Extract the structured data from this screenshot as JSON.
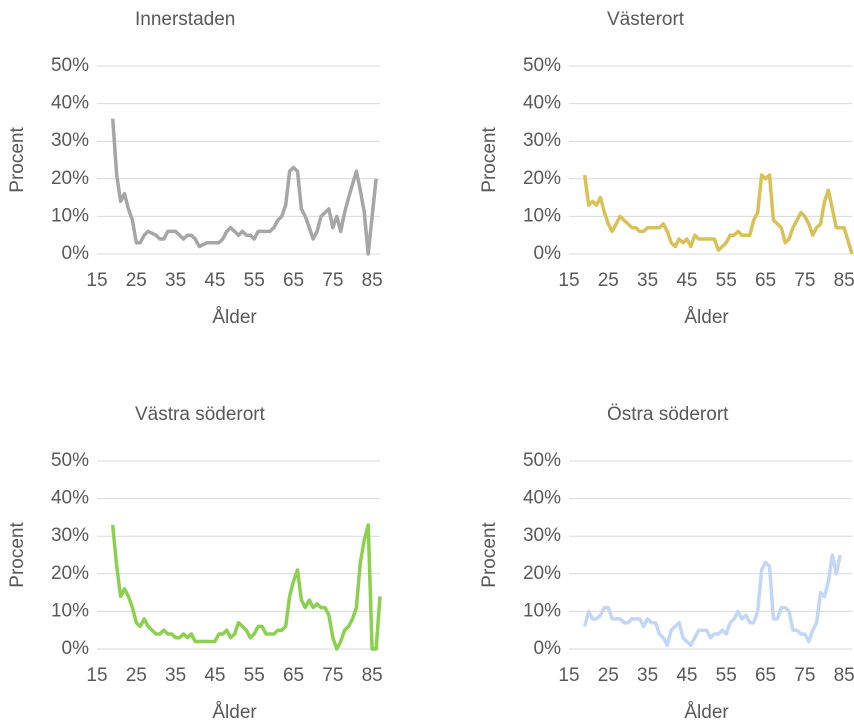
{
  "chart_data": [
    {
      "type": "line",
      "title": "Innerstaden",
      "x_label": "Ålder",
      "y_label": "Procent",
      "color": "#a6a6a6",
      "x": [
        19,
        20,
        21,
        22,
        23,
        24,
        25,
        26,
        27,
        28,
        30,
        31,
        32,
        33,
        35,
        37,
        38,
        39,
        40,
        41,
        43,
        46,
        47,
        48,
        49,
        50,
        51,
        52,
        53,
        54,
        55,
        56,
        59,
        60,
        61,
        62,
        63,
        64,
        65,
        66,
        67,
        68,
        69,
        70,
        71,
        72,
        73,
        74,
        75,
        76,
        77,
        78,
        79,
        81,
        82,
        83,
        84,
        86
      ],
      "values": [
        36,
        21,
        14,
        16,
        12,
        9,
        3,
        3,
        5,
        6,
        5,
        4,
        4,
        6,
        6,
        4,
        5,
        5,
        4,
        2,
        3,
        3,
        4,
        6,
        7,
        6,
        5,
        6,
        5,
        5,
        4,
        6,
        6,
        7,
        9,
        10,
        13,
        22,
        23,
        22,
        12,
        10,
        7,
        4,
        6,
        10,
        11,
        12,
        7,
        10,
        6,
        11,
        15,
        22,
        17,
        11,
        0,
        20
      ],
      "xlim": [
        15,
        87
      ],
      "xticks": [
        15,
        25,
        35,
        45,
        55,
        65,
        75,
        85
      ],
      "ylim": [
        0,
        50
      ],
      "yticks": [
        {
          "value": 0,
          "label": "0%"
        },
        {
          "value": 10,
          "label": "10%"
        },
        {
          "value": 20,
          "label": "20%"
        },
        {
          "value": 30,
          "label": "30%"
        },
        {
          "value": 40,
          "label": "40%"
        },
        {
          "value": 50,
          "label": "50%"
        }
      ],
      "grid": true
    },
    {
      "type": "line",
      "title": "Västerort",
      "x_label": "Ålder",
      "y_label": "Procent",
      "color": "#d9c158",
      "x": [
        19,
        20,
        21,
        22,
        23,
        24,
        25,
        26,
        27,
        28,
        29,
        30,
        31,
        32,
        33,
        34,
        35,
        37,
        38,
        39,
        40,
        41,
        42,
        43,
        44,
        45,
        46,
        47,
        48,
        52,
        53,
        54,
        55,
        56,
        57,
        58,
        59,
        61,
        62,
        63,
        64,
        65,
        66,
        67,
        68,
        69,
        70,
        71,
        72,
        73,
        74,
        75,
        76,
        77,
        78,
        79,
        80,
        81,
        83,
        85,
        87
      ],
      "values": [
        21,
        13,
        14,
        13,
        15,
        11,
        8,
        6,
        8,
        10,
        9,
        8,
        7,
        7,
        6,
        6,
        7,
        7,
        7,
        8,
        6,
        3,
        2,
        4,
        3,
        4,
        2,
        5,
        4,
        4,
        1,
        2,
        3,
        5,
        5,
        6,
        5,
        5,
        9,
        11,
        21,
        20,
        21,
        9,
        8,
        7,
        3,
        4,
        7,
        9,
        11,
        10,
        8,
        5,
        7,
        8,
        14,
        17,
        7,
        7,
        0
      ],
      "xlim": [
        15,
        87
      ],
      "xticks": [
        15,
        25,
        35,
        45,
        55,
        65,
        75,
        85
      ],
      "ylim": [
        0,
        50
      ],
      "yticks": [
        {
          "value": 0,
          "label": "0%"
        },
        {
          "value": 10,
          "label": "10%"
        },
        {
          "value": 20,
          "label": "20%"
        },
        {
          "value": 30,
          "label": "30%"
        },
        {
          "value": 40,
          "label": "40%"
        },
        {
          "value": 50,
          "label": "50%"
        }
      ],
      "grid": true
    },
    {
      "type": "line",
      "title": "Västra söderort",
      "x_label": "Ålder",
      "y_label": "Procent",
      "color": "#8cd04f",
      "x": [
        19,
        20,
        21,
        22,
        23,
        24,
        25,
        26,
        27,
        28,
        29,
        30,
        31,
        32,
        33,
        34,
        35,
        36,
        37,
        38,
        39,
        40,
        45,
        46,
        47,
        48,
        49,
        50,
        51,
        52,
        53,
        54,
        55,
        56,
        57,
        58,
        60,
        61,
        62,
        63,
        64,
        65,
        66,
        67,
        68,
        69,
        70,
        71,
        72,
        73,
        74,
        75,
        76,
        77,
        78,
        79,
        80,
        81,
        82,
        83,
        84,
        85,
        86,
        87
      ],
      "values": [
        33,
        22,
        14,
        16,
        14,
        11,
        7,
        6,
        8,
        6,
        5,
        4,
        4,
        5,
        4,
        4,
        3,
        3,
        4,
        3,
        4,
        2,
        2,
        4,
        4,
        5,
        3,
        4,
        7,
        6,
        5,
        3,
        4,
        6,
        6,
        4,
        4,
        5,
        5,
        6,
        14,
        18,
        21,
        13,
        11,
        13,
        11,
        12,
        11,
        11,
        9,
        3,
        0,
        2,
        5,
        6,
        8,
        11,
        23,
        29,
        33,
        0,
        0,
        14
      ],
      "xlim": [
        15,
        87
      ],
      "xticks": [
        15,
        25,
        35,
        45,
        55,
        65,
        75,
        85
      ],
      "ylim": [
        0,
        50
      ],
      "yticks": [
        {
          "value": 0,
          "label": "0%"
        },
        {
          "value": 10,
          "label": "10%"
        },
        {
          "value": 20,
          "label": "20%"
        },
        {
          "value": 30,
          "label": "30%"
        },
        {
          "value": 40,
          "label": "40%"
        },
        {
          "value": 50,
          "label": "50%"
        }
      ],
      "grid": true
    },
    {
      "type": "line",
      "title": "Östra söderort",
      "x_label": "Ålder",
      "y_label": "Procent",
      "color": "#c2d6f5",
      "x": [
        19,
        20,
        21,
        22,
        23,
        24,
        25,
        26,
        27,
        28,
        29,
        30,
        31,
        32,
        33,
        34,
        35,
        36,
        37,
        38,
        39,
        40,
        41,
        42,
        43,
        44,
        45,
        46,
        47,
        48,
        49,
        50,
        51,
        52,
        53,
        54,
        55,
        56,
        57,
        58,
        59,
        60,
        61,
        62,
        63,
        64,
        65,
        66,
        67,
        68,
        69,
        70,
        71,
        72,
        73,
        74,
        75,
        76,
        77,
        78,
        79,
        80,
        81,
        82,
        83,
        84
      ],
      "values": [
        6,
        10,
        8,
        8,
        9,
        11,
        11,
        8,
        8,
        8,
        7,
        7,
        8,
        8,
        8,
        6,
        8,
        7,
        7,
        4,
        3,
        1,
        5,
        6,
        7,
        3,
        2,
        1,
        3,
        5,
        5,
        5,
        3,
        4,
        4,
        5,
        4,
        7,
        8,
        10,
        8,
        9,
        7,
        7,
        10,
        21,
        23,
        22,
        8,
        8,
        11,
        11,
        10,
        5,
        5,
        4,
        4,
        2,
        5,
        7,
        15,
        14,
        18,
        25,
        20,
        25
      ],
      "xlim": [
        15,
        87
      ],
      "xticks": [
        15,
        25,
        35,
        45,
        55,
        65,
        75,
        85
      ],
      "ylim": [
        0,
        50
      ],
      "yticks": [
        {
          "value": 0,
          "label": "0%"
        },
        {
          "value": 10,
          "label": "10%"
        },
        {
          "value": 20,
          "label": "20%"
        },
        {
          "value": 30,
          "label": "30%"
        },
        {
          "value": 40,
          "label": "40%"
        },
        {
          "value": 50,
          "label": "50%"
        }
      ],
      "grid": true
    }
  ]
}
